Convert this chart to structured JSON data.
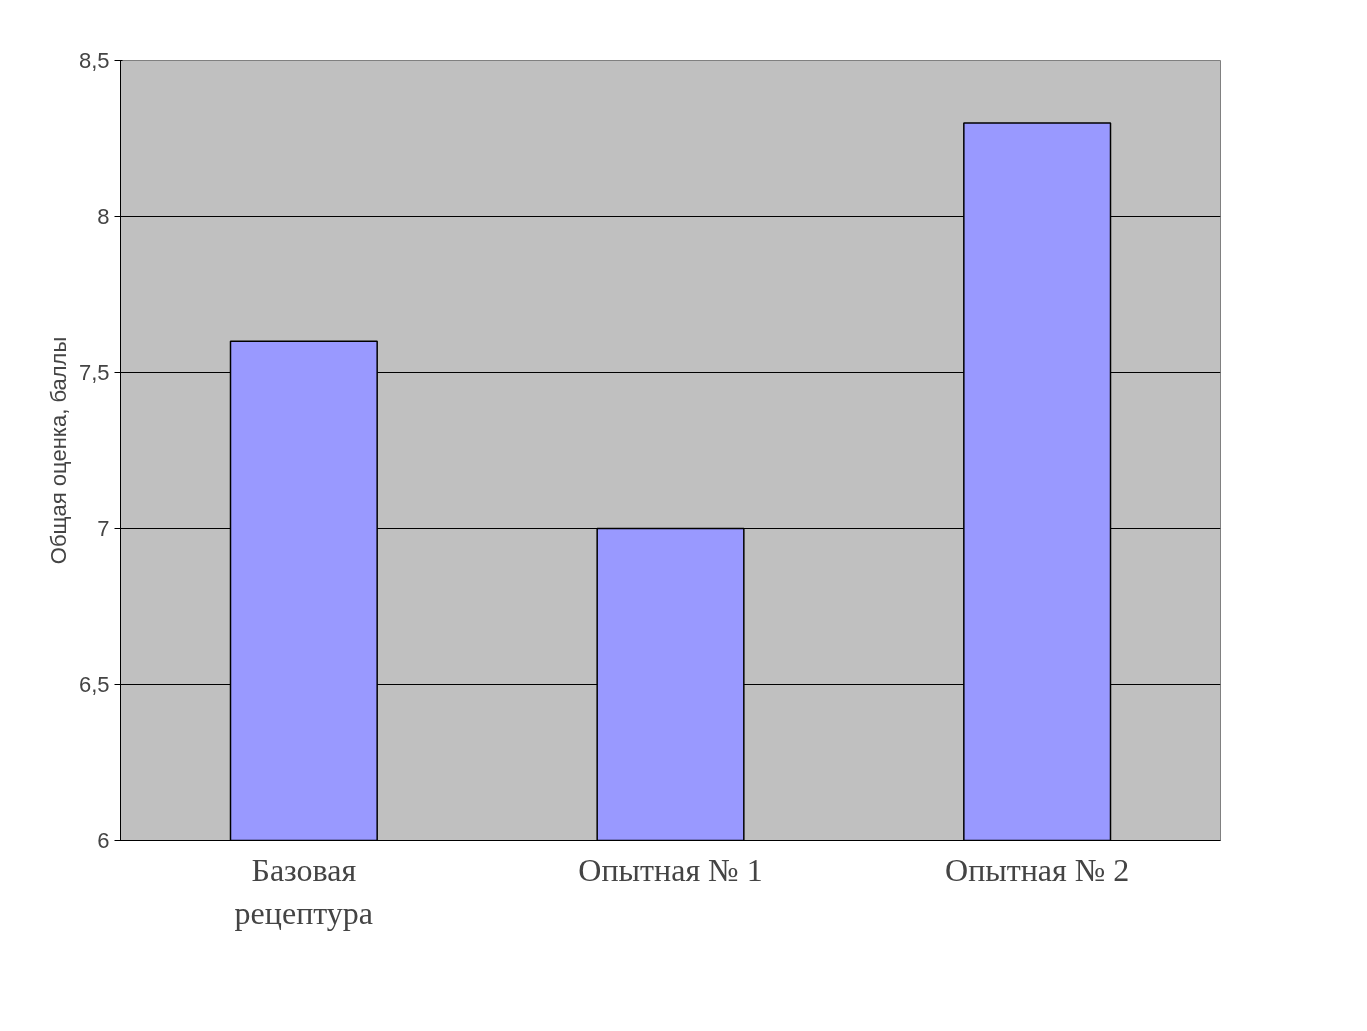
{
  "chart_data": {
    "type": "bar",
    "ylabel": "Общая оценка, баллы",
    "categories": [
      "Базовая рецептура",
      "Опытная № 1",
      "Опытная № 2"
    ],
    "values": [
      7.6,
      7.0,
      8.3
    ],
    "color": "#9999ff",
    "ylim": [
      6,
      8.5
    ],
    "yticks": [
      6,
      {
        "value": 6.5,
        "label": "6,5"
      },
      7,
      {
        "value": 7.5,
        "label": "7,5"
      },
      8,
      {
        "value": 8.5,
        "label": "8,5"
      }
    ],
    "grid": "y"
  }
}
